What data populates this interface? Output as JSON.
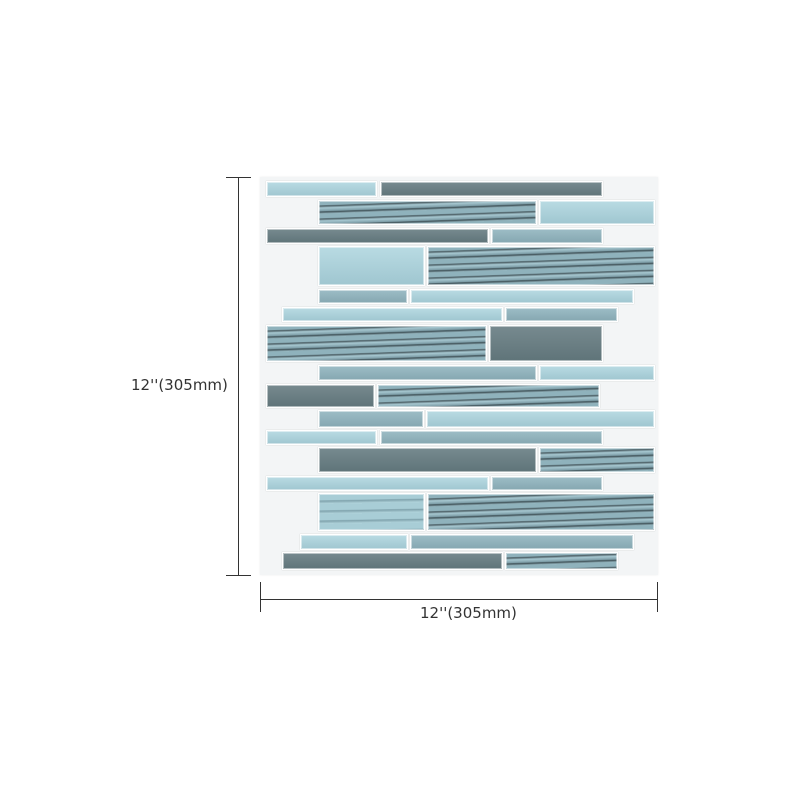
{
  "product": {
    "height_label": "12''(305mm)",
    "width_label": "12''(305mm)",
    "tile_colors": {
      "light": "#a9cfd8",
      "mid": "#8fb0ba",
      "gray": "#6c8085"
    }
  }
}
